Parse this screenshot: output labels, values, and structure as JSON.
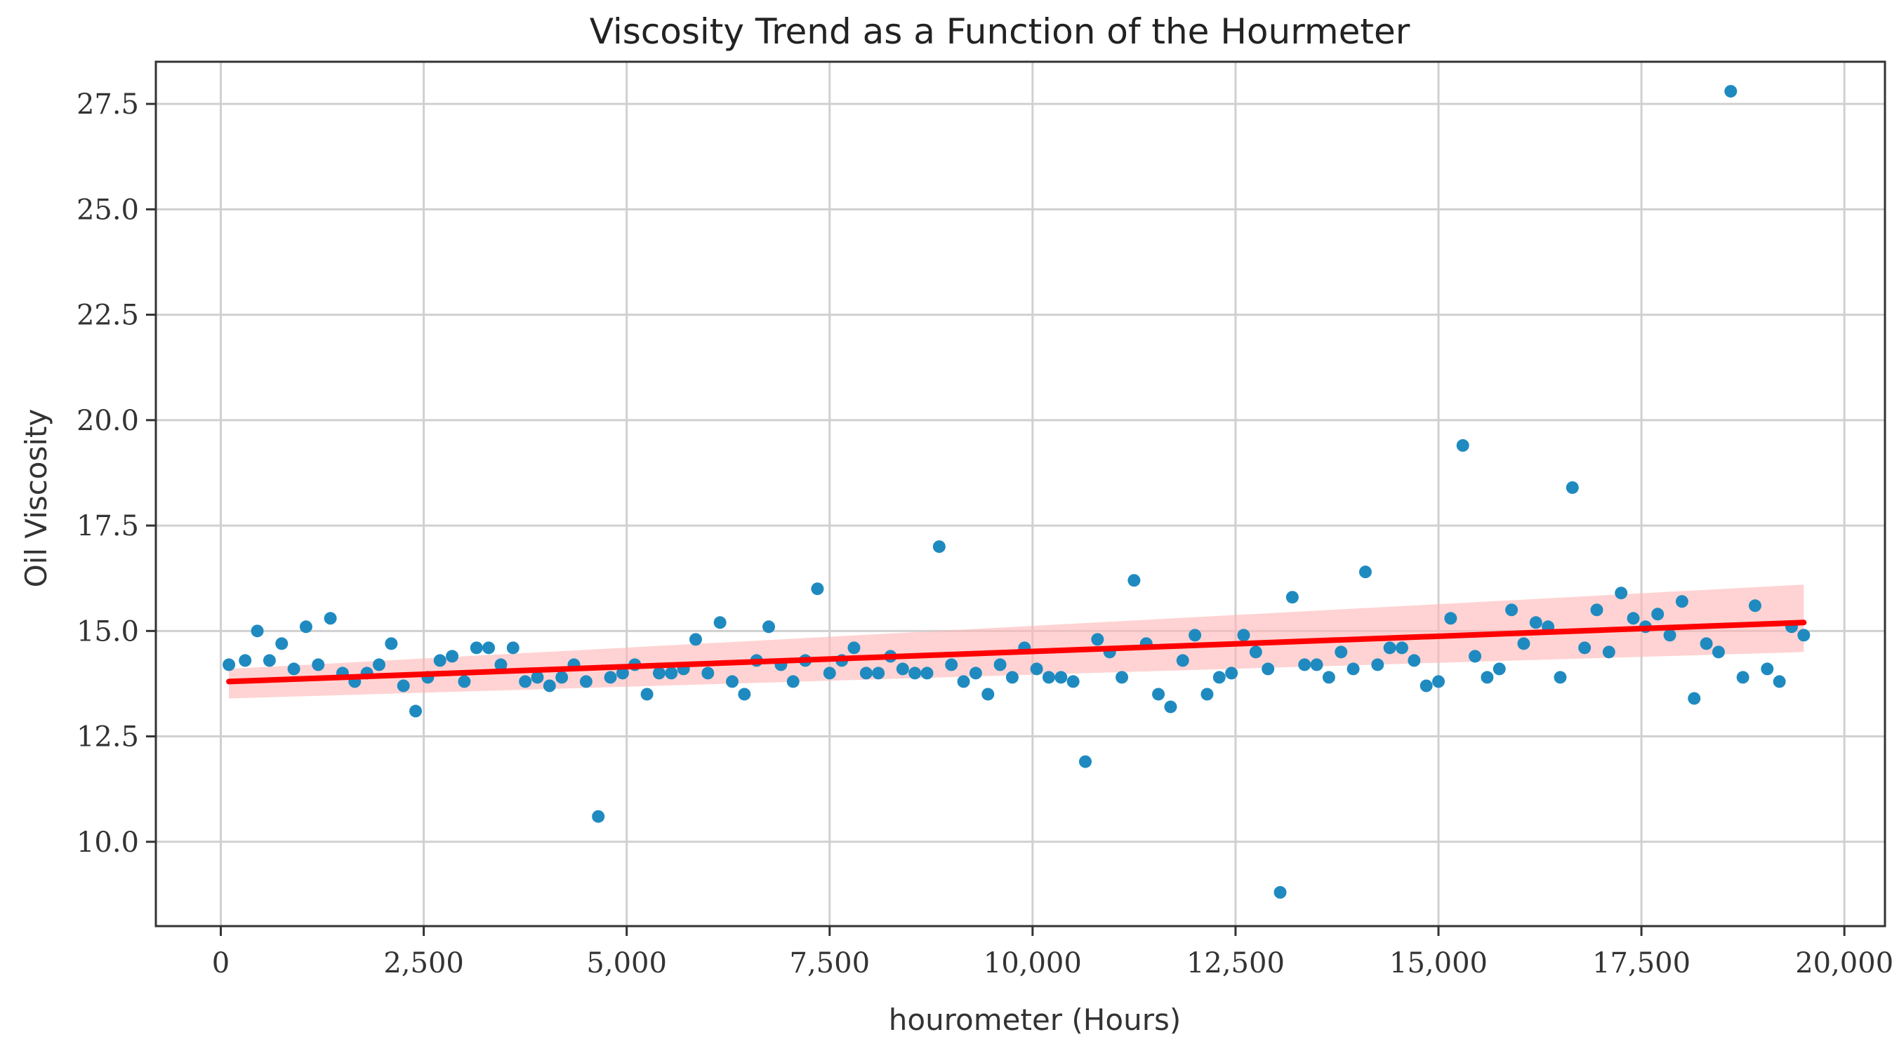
{
  "chart_data": {
    "type": "scatter",
    "title": "Viscosity Trend as a Function of the Hourmeter",
    "xlabel": "hourometer (Hours)",
    "ylabel": "Oil Viscosity",
    "xlim": [
      -800,
      20500
    ],
    "ylim": [
      8.0,
      28.5
    ],
    "x_ticks": [
      0,
      2500,
      5000,
      7500,
      10000,
      12500,
      15000,
      17500,
      20000
    ],
    "x_tick_labels": [
      "0",
      "2,500",
      "5,000",
      "7,500",
      "10,000",
      "12,500",
      "15,000",
      "17,500",
      "20,000"
    ],
    "y_ticks": [
      10.0,
      12.5,
      15.0,
      17.5,
      20.0,
      22.5,
      25.0,
      27.5
    ],
    "y_tick_labels": [
      "10.0",
      "12.5",
      "15.0",
      "17.5",
      "20.0",
      "22.5",
      "25.0",
      "27.5"
    ],
    "grid": true,
    "colors": {
      "points": "#1f8ac0",
      "trend_line": "#ff0000",
      "confidence_band": "#ffb6b6"
    },
    "series": [
      {
        "type": "scatter",
        "points": [
          [
            100,
            14.2
          ],
          [
            300,
            14.3
          ],
          [
            450,
            15.0
          ],
          [
            600,
            14.3
          ],
          [
            750,
            14.7
          ],
          [
            900,
            14.1
          ],
          [
            1050,
            15.1
          ],
          [
            1200,
            14.2
          ],
          [
            1350,
            15.3
          ],
          [
            1500,
            14.0
          ],
          [
            1650,
            13.8
          ],
          [
            1800,
            14.0
          ],
          [
            1950,
            14.2
          ],
          [
            2100,
            14.7
          ],
          [
            2250,
            13.7
          ],
          [
            2400,
            13.1
          ],
          [
            2550,
            13.9
          ],
          [
            2700,
            14.3
          ],
          [
            2850,
            14.4
          ],
          [
            3000,
            13.8
          ],
          [
            3150,
            14.6
          ],
          [
            3300,
            14.6
          ],
          [
            3450,
            14.2
          ],
          [
            3600,
            14.6
          ],
          [
            3750,
            13.8
          ],
          [
            3900,
            13.9
          ],
          [
            4050,
            13.7
          ],
          [
            4200,
            13.9
          ],
          [
            4350,
            14.2
          ],
          [
            4500,
            13.8
          ],
          [
            4650,
            10.6
          ],
          [
            4800,
            13.9
          ],
          [
            4950,
            14.0
          ],
          [
            5100,
            14.2
          ],
          [
            5250,
            13.5
          ],
          [
            5400,
            14.0
          ],
          [
            5550,
            14.0
          ],
          [
            5700,
            14.1
          ],
          [
            5850,
            14.8
          ],
          [
            6000,
            14.0
          ],
          [
            6150,
            15.2
          ],
          [
            6300,
            13.8
          ],
          [
            6450,
            13.5
          ],
          [
            6600,
            14.3
          ],
          [
            6750,
            15.1
          ],
          [
            6900,
            14.2
          ],
          [
            7050,
            13.8
          ],
          [
            7200,
            14.3
          ],
          [
            7350,
            16.0
          ],
          [
            7500,
            14.0
          ],
          [
            7650,
            14.3
          ],
          [
            7800,
            14.6
          ],
          [
            7950,
            14.0
          ],
          [
            8100,
            14.0
          ],
          [
            8250,
            14.4
          ],
          [
            8400,
            14.1
          ],
          [
            8550,
            14.0
          ],
          [
            8700,
            14.0
          ],
          [
            8850,
            17.0
          ],
          [
            9000,
            14.2
          ],
          [
            9150,
            13.8
          ],
          [
            9300,
            14.0
          ],
          [
            9450,
            13.5
          ],
          [
            9600,
            14.2
          ],
          [
            9750,
            13.9
          ],
          [
            9900,
            14.6
          ],
          [
            10050,
            14.1
          ],
          [
            10200,
            13.9
          ],
          [
            10350,
            13.9
          ],
          [
            10500,
            13.8
          ],
          [
            10650,
            11.9
          ],
          [
            10800,
            14.8
          ],
          [
            10950,
            14.5
          ],
          [
            11100,
            13.9
          ],
          [
            11250,
            16.2
          ],
          [
            11400,
            14.7
          ],
          [
            11550,
            13.5
          ],
          [
            11700,
            13.2
          ],
          [
            11850,
            14.3
          ],
          [
            12000,
            14.9
          ],
          [
            12150,
            13.5
          ],
          [
            12300,
            13.9
          ],
          [
            12450,
            14.0
          ],
          [
            12600,
            14.9
          ],
          [
            12750,
            14.5
          ],
          [
            12900,
            14.1
          ],
          [
            13050,
            8.8
          ],
          [
            13200,
            15.8
          ],
          [
            13350,
            14.2
          ],
          [
            13500,
            14.2
          ],
          [
            13650,
            13.9
          ],
          [
            13800,
            14.5
          ],
          [
            13950,
            14.1
          ],
          [
            14100,
            16.4
          ],
          [
            14250,
            14.2
          ],
          [
            14400,
            14.6
          ],
          [
            14550,
            14.6
          ],
          [
            14700,
            14.3
          ],
          [
            14850,
            13.7
          ],
          [
            15000,
            13.8
          ],
          [
            15150,
            15.3
          ],
          [
            15300,
            19.4
          ],
          [
            15450,
            14.4
          ],
          [
            15600,
            13.9
          ],
          [
            15750,
            14.1
          ],
          [
            15900,
            15.5
          ],
          [
            16050,
            14.7
          ],
          [
            16200,
            15.2
          ],
          [
            16350,
            15.1
          ],
          [
            16500,
            13.9
          ],
          [
            16650,
            18.4
          ],
          [
            16800,
            14.6
          ],
          [
            16950,
            15.5
          ],
          [
            17100,
            14.5
          ],
          [
            17250,
            15.9
          ],
          [
            17400,
            15.3
          ],
          [
            17550,
            15.1
          ],
          [
            17700,
            15.4
          ],
          [
            17850,
            14.9
          ],
          [
            18000,
            15.7
          ],
          [
            18150,
            13.4
          ],
          [
            18300,
            14.7
          ],
          [
            18450,
            14.5
          ],
          [
            18600,
            27.8
          ],
          [
            18750,
            13.9
          ],
          [
            18900,
            15.6
          ],
          [
            19050,
            14.1
          ],
          [
            19200,
            13.8
          ],
          [
            19350,
            15.1
          ],
          [
            19500,
            14.9
          ]
        ]
      },
      {
        "type": "line",
        "x": [
          100,
          19500
        ],
        "y": [
          13.8,
          15.2
        ]
      },
      {
        "type": "area",
        "x": [
          100,
          19500
        ],
        "y_lower": [
          13.4,
          14.5
        ],
        "y_upper": [
          14.1,
          16.1
        ]
      }
    ]
  }
}
